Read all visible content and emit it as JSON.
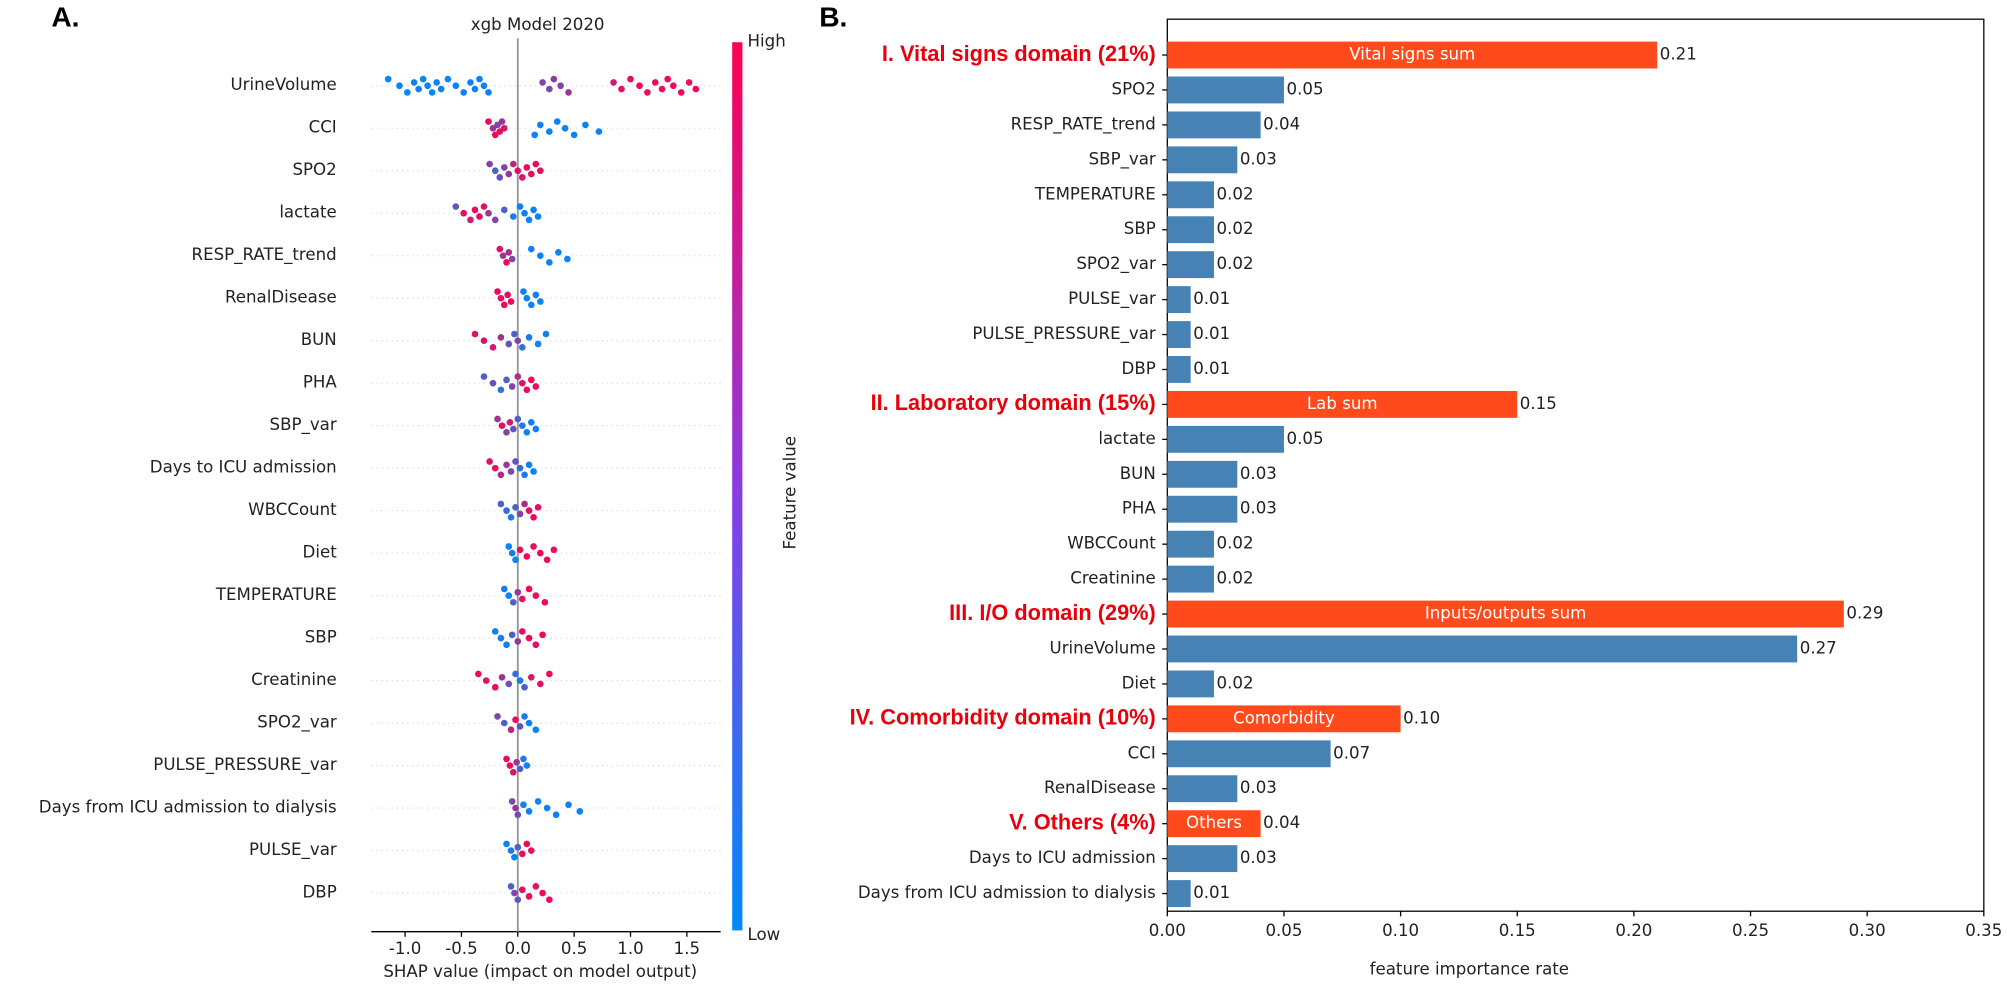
{
  "panels": {
    "left_label": "A.",
    "right_label": "B."
  },
  "chart_data": [
    {
      "type": "beeswarm",
      "title": "xgb Model 2020",
      "x_label": "SHAP value (impact on model output)",
      "colorbar_label": "Feature value",
      "colorbar_high": "High",
      "colorbar_low": "Low",
      "colormap": [
        "#008afb",
        "#ff0052"
      ],
      "xlim": [
        -1.3,
        1.8
      ],
      "xticks": [
        {
          "value": -1,
          "label": "-1.0"
        },
        -0.5,
        {
          "value": 0,
          "label": "0.0"
        },
        0.5,
        {
          "value": 1,
          "label": "1.0"
        },
        1.5
      ],
      "features": [
        {
          "name": "UrineVolume",
          "x": [
            -1.15,
            -1.05,
            -0.98,
            -0.92,
            -0.88,
            -0.84,
            -0.8,
            -0.76,
            -0.72,
            -0.68,
            -0.62,
            -0.55,
            -0.48,
            -0.42,
            -0.38,
            -0.34,
            -0.3,
            -0.26,
            0.22,
            0.28,
            0.32,
            0.38,
            0.45,
            0.85,
            0.92,
            1.0,
            1.08,
            1.15,
            1.22,
            1.28,
            1.33,
            1.38,
            1.45,
            1.52,
            1.58
          ],
          "feature_value": [
            0.02,
            0.03,
            0.02,
            0.04,
            0.03,
            0.02,
            0.05,
            0.03,
            0.04,
            0.05,
            0.03,
            0.04,
            0.05,
            0.06,
            0.04,
            0.05,
            0.06,
            0.1,
            0.5,
            0.45,
            0.55,
            0.5,
            0.6,
            0.8,
            0.85,
            0.9,
            0.95,
            0.9,
            0.95,
            0.9,
            0.95,
            0.92,
            0.95,
            0.9,
            0.95
          ]
        },
        {
          "name": "CCI",
          "x": [
            -0.26,
            -0.22,
            -0.2,
            -0.18,
            -0.16,
            -0.14,
            -0.12,
            0.15,
            0.2,
            0.28,
            0.35,
            0.42,
            0.5,
            0.6,
            0.72
          ],
          "feature_value": [
            0.9,
            0.6,
            0.95,
            0.5,
            0.9,
            0.6,
            0.85,
            0.05,
            0.05,
            0.05,
            0.05,
            0.05,
            0.05,
            0.05,
            0.05
          ]
        },
        {
          "name": "SPO2",
          "x": [
            -0.25,
            -0.2,
            -0.16,
            -0.12,
            -0.08,
            -0.04,
            0.0,
            0.04,
            0.08,
            0.12,
            0.16,
            0.2
          ],
          "feature_value": [
            0.5,
            0.3,
            0.4,
            0.5,
            0.6,
            0.7,
            0.9,
            0.9,
            0.95,
            0.9,
            0.95,
            0.9
          ]
        },
        {
          "name": "lactate",
          "x": [
            -0.55,
            -0.48,
            -0.42,
            -0.38,
            -0.34,
            -0.3,
            -0.26,
            -0.2,
            -0.12,
            -0.04,
            0.02,
            0.06,
            0.1,
            0.14,
            0.18
          ],
          "feature_value": [
            0.4,
            0.9,
            0.8,
            0.95,
            0.9,
            0.85,
            0.6,
            0.5,
            0.3,
            0.1,
            0.05,
            0.05,
            0.05,
            0.05,
            0.05
          ]
        },
        {
          "name": "RESP_RATE_trend",
          "x": [
            -0.16,
            -0.13,
            -0.1,
            -0.08,
            -0.05,
            0.12,
            0.2,
            0.28,
            0.36,
            0.44
          ],
          "feature_value": [
            0.9,
            0.6,
            0.9,
            0.7,
            0.5,
            0.05,
            0.05,
            0.05,
            0.05,
            0.05
          ]
        },
        {
          "name": "RenalDisease",
          "x": [
            -0.18,
            -0.15,
            -0.12,
            -0.09,
            -0.06,
            0.05,
            0.08,
            0.12,
            0.16,
            0.2
          ],
          "feature_value": [
            0.95,
            0.9,
            0.95,
            0.9,
            0.95,
            0.05,
            0.05,
            0.05,
            0.05,
            0.05
          ]
        },
        {
          "name": "BUN",
          "x": [
            -0.38,
            -0.3,
            -0.22,
            -0.15,
            -0.08,
            -0.03,
            0.0,
            0.04,
            0.1,
            0.18,
            0.25
          ],
          "feature_value": [
            0.9,
            0.85,
            0.8,
            0.6,
            0.4,
            0.3,
            0.5,
            0.2,
            0.1,
            0.05,
            0.05
          ]
        },
        {
          "name": "PHA",
          "x": [
            -0.3,
            -0.22,
            -0.15,
            -0.1,
            -0.05,
            0.0,
            0.04,
            0.08,
            0.12,
            0.16
          ],
          "feature_value": [
            0.3,
            0.4,
            0.2,
            0.3,
            0.5,
            0.7,
            0.85,
            0.9,
            0.95,
            0.9
          ]
        },
        {
          "name": "SBP_var",
          "x": [
            -0.18,
            -0.14,
            -0.1,
            -0.07,
            -0.04,
            0.0,
            0.04,
            0.08,
            0.12,
            0.16
          ],
          "feature_value": [
            0.6,
            0.9,
            0.5,
            0.8,
            0.4,
            0.3,
            0.1,
            0.05,
            0.05,
            0.05
          ]
        },
        {
          "name": "Days to ICU admission",
          "x": [
            -0.25,
            -0.2,
            -0.15,
            -0.1,
            -0.06,
            -0.02,
            0.02,
            0.06,
            0.1,
            0.14
          ],
          "feature_value": [
            0.85,
            0.9,
            0.7,
            0.6,
            0.5,
            0.4,
            0.2,
            0.1,
            0.05,
            0.05
          ]
        },
        {
          "name": "WBCCount",
          "x": [
            -0.15,
            -0.1,
            -0.06,
            -0.02,
            0.02,
            0.06,
            0.1,
            0.14,
            0.18
          ],
          "feature_value": [
            0.3,
            0.2,
            0.1,
            0.3,
            0.5,
            0.7,
            0.9,
            0.95,
            0.9
          ]
        },
        {
          "name": "Diet",
          "x": [
            -0.08,
            -0.05,
            -0.02,
            0.02,
            0.08,
            0.14,
            0.2,
            0.26,
            0.32
          ],
          "feature_value": [
            0.05,
            0.1,
            0.05,
            0.9,
            0.95,
            0.9,
            0.95,
            0.9,
            0.95
          ]
        },
        {
          "name": "TEMPERATURE",
          "x": [
            -0.12,
            -0.08,
            -0.04,
            0.0,
            0.04,
            0.1,
            0.16,
            0.24
          ],
          "feature_value": [
            0.1,
            0.05,
            0.3,
            0.6,
            0.9,
            0.95,
            0.9,
            0.95
          ]
        },
        {
          "name": "SBP",
          "x": [
            -0.2,
            -0.15,
            -0.1,
            -0.05,
            0.0,
            0.04,
            0.1,
            0.16,
            0.22
          ],
          "feature_value": [
            0.05,
            0.1,
            0.05,
            0.3,
            0.6,
            0.9,
            0.95,
            0.9,
            0.95
          ]
        },
        {
          "name": "Creatinine",
          "x": [
            -0.35,
            -0.28,
            -0.2,
            -0.14,
            -0.08,
            -0.02,
            0.02,
            0.06,
            0.12,
            0.2,
            0.28
          ],
          "feature_value": [
            0.9,
            0.85,
            0.95,
            0.6,
            0.4,
            0.2,
            0.1,
            0.3,
            0.8,
            0.9,
            0.95
          ]
        },
        {
          "name": "SPO2_var",
          "x": [
            -0.18,
            -0.12,
            -0.06,
            -0.02,
            0.02,
            0.06,
            0.1,
            0.16
          ],
          "feature_value": [
            0.5,
            0.3,
            0.7,
            0.9,
            0.4,
            0.1,
            0.05,
            0.05
          ]
        },
        {
          "name": "PULSE_PRESSURE_var",
          "x": [
            -0.1,
            -0.07,
            -0.04,
            -0.01,
            0.02,
            0.05,
            0.08
          ],
          "feature_value": [
            0.95,
            0.9,
            0.85,
            0.6,
            0.3,
            0.1,
            0.05
          ]
        },
        {
          "name": "Days from ICU admission to dialysis",
          "x": [
            -0.05,
            -0.02,
            0.0,
            0.05,
            0.1,
            0.18,
            0.26,
            0.34,
            0.45,
            0.55
          ],
          "feature_value": [
            0.5,
            0.6,
            0.4,
            0.05,
            0.05,
            0.05,
            0.05,
            0.05,
            0.05,
            0.05
          ]
        },
        {
          "name": "PULSE_var",
          "x": [
            -0.1,
            -0.06,
            -0.03,
            0.0,
            0.04,
            0.08,
            0.12
          ],
          "feature_value": [
            0.05,
            0.1,
            0.05,
            0.3,
            0.9,
            0.95,
            0.9
          ]
        },
        {
          "name": "DBP",
          "x": [
            -0.06,
            -0.03,
            0.0,
            0.04,
            0.1,
            0.16,
            0.22,
            0.28
          ],
          "feature_value": [
            0.3,
            0.5,
            0.4,
            0.9,
            0.95,
            0.9,
            0.95,
            0.9
          ]
        }
      ]
    },
    {
      "type": "barh",
      "x_label": "feature importance rate",
      "xlim": [
        0,
        0.35
      ],
      "xticks": [
        {
          "value": 0,
          "label": "0.00"
        },
        0.05,
        {
          "value": 0.1,
          "label": "0.10"
        },
        0.15,
        {
          "value": 0.2,
          "label": "0.20"
        },
        0.25,
        {
          "value": 0.3,
          "label": "0.30"
        },
        0.35
      ],
      "categories": [
        "I. Vital signs domain (21%)",
        "SPO2",
        "RESP_RATE_trend",
        "SBP_var",
        "TEMPERATURE",
        "SBP",
        "SPO2_var",
        "PULSE_var",
        "PULSE_PRESSURE_var",
        "DBP",
        "II. Laboratory domain (15%)",
        "lactate",
        "BUN",
        "PHA",
        "WBCCount",
        "Creatinine",
        "III. I/O domain (29%)",
        "UrineVolume",
        "Diet",
        "IV. Comorbidity domain (10%)",
        "CCI",
        "RenalDisease",
        "V. Others (4%)",
        "Days to ICU admission",
        "Days from ICU admission to dialysis"
      ],
      "values": [
        0.21,
        0.05,
        0.04,
        0.03,
        0.02,
        0.02,
        0.02,
        0.01,
        0.01,
        0.01,
        0.15,
        0.05,
        0.03,
        0.03,
        0.02,
        0.02,
        0.29,
        0.27,
        0.02,
        0.1,
        0.07,
        0.03,
        0.04,
        0.03,
        0.01
      ],
      "value_labels": [
        "0.21",
        "0.05",
        "0.04",
        "0.03",
        "0.02",
        "0.02",
        "0.02",
        "0.01",
        "0.01",
        "0.01",
        "0.15",
        "0.05",
        "0.03",
        "0.03",
        "0.02",
        "0.02",
        "0.29",
        "0.27",
        "0.02",
        "0.10",
        "0.07",
        "0.03",
        "0.04",
        "0.03",
        "0.01"
      ],
      "inner_labels": [
        "Vital signs sum",
        null,
        null,
        null,
        null,
        null,
        null,
        null,
        null,
        null,
        "Lab sum",
        null,
        null,
        null,
        null,
        null,
        "Inputs/outputs sum",
        null,
        null,
        "Comorbidity",
        null,
        null,
        "Others",
        null,
        null
      ],
      "colors": [
        "#ff4a1c",
        "#4682b4",
        "#4682b4",
        "#4682b4",
        "#4682b4",
        "#4682b4",
        "#4682b4",
        "#4682b4",
        "#4682b4",
        "#4682b4",
        "#ff4a1c",
        "#4682b4",
        "#4682b4",
        "#4682b4",
        "#4682b4",
        "#4682b4",
        "#ff4a1c",
        "#4682b4",
        "#4682b4",
        "#ff4a1c",
        "#4682b4",
        "#4682b4",
        "#ff4a1c",
        "#4682b4",
        "#4682b4"
      ]
    }
  ]
}
